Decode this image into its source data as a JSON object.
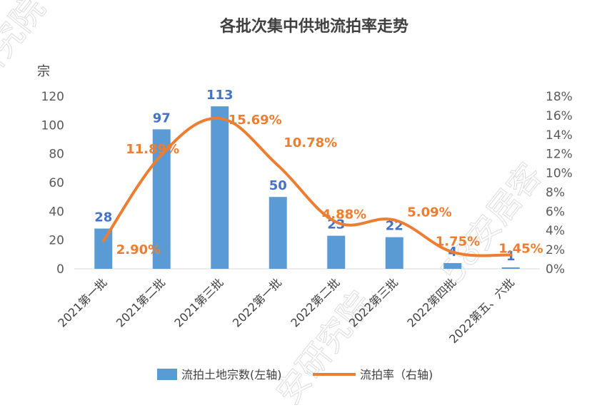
{
  "chart_data": {
    "type": "bar",
    "title": "各批次集中供地流拍率走势",
    "y_left_unit": "宗",
    "categories": [
      "2021第一批",
      "2021第二批",
      "2021第三批",
      "2022第一批",
      "2022第二批",
      "2022第三批",
      "2022第四批",
      "2022第五、六批"
    ],
    "series": [
      {
        "name": "流拍土地宗数(左轴)",
        "type": "bar",
        "axis": "left",
        "values": [
          28,
          97,
          113,
          50,
          23,
          22,
          4,
          1
        ],
        "labels": [
          "28",
          "97",
          "113",
          "50",
          "23",
          "22",
          "4",
          "1"
        ]
      },
      {
        "name": "流拍率（右轴)",
        "type": "line",
        "axis": "right",
        "values": [
          2.9,
          11.89,
          15.69,
          10.78,
          4.88,
          5.09,
          1.75,
          1.45
        ],
        "labels": [
          "2.90%",
          "11.89%",
          "15.69%",
          "10.78%",
          "4.88%",
          "5.09%",
          "1.75%",
          "1.45%"
        ]
      }
    ],
    "y_left": {
      "ylim": [
        0,
        120
      ],
      "ticks": [
        "0",
        "20",
        "40",
        "60",
        "80",
        "100",
        "120"
      ]
    },
    "y_right": {
      "ylim": [
        0,
        18
      ],
      "ticks": [
        "0%",
        "2%",
        "4%",
        "6%",
        "8%",
        "10%",
        "12%",
        "14%",
        "16%",
        "18%"
      ]
    },
    "colors": {
      "bar": "#5b9bd5",
      "line": "#ed7d31",
      "bar_label": "#4472c4"
    },
    "legend_position": "bottom",
    "grid": false
  }
}
